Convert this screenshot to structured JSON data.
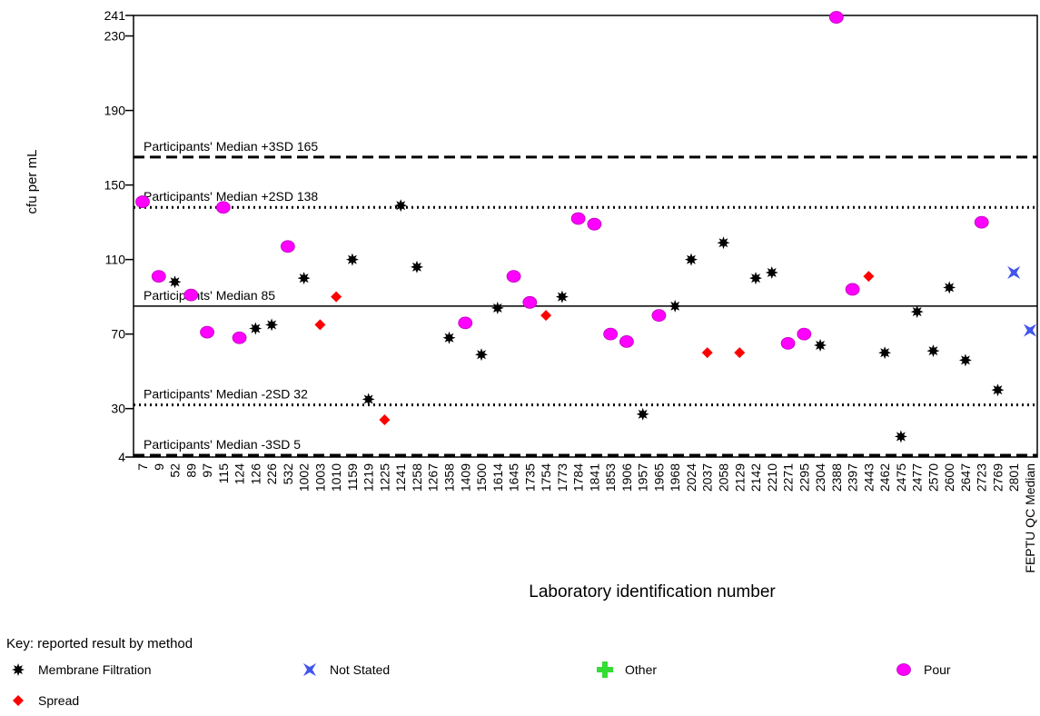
{
  "chart_data": {
    "type": "scatter",
    "y_label": "cfu per mL",
    "x_label": "Laboratory identification number",
    "legend_title": "Key: reported result by method",
    "categories": [
      "7",
      "9",
      "52",
      "89",
      "97",
      "115",
      "124",
      "126",
      "226",
      "532",
      "1002",
      "1003",
      "1010",
      "1159",
      "1219",
      "1225",
      "1241",
      "1258",
      "1267",
      "1358",
      "1409",
      "1500",
      "1614",
      "1645",
      "1735",
      "1754",
      "1773",
      "1784",
      "1841",
      "1853",
      "1906",
      "1957",
      "1965",
      "1968",
      "2024",
      "2037",
      "2058",
      "2129",
      "2142",
      "2210",
      "2271",
      "2295",
      "2304",
      "2388",
      "2397",
      "2443",
      "2462",
      "2475",
      "2477",
      "2570",
      "2600",
      "2647",
      "2723",
      "2769",
      "2801",
      "FEPTU QC Median"
    ],
    "ylim": [
      4,
      241
    ],
    "yticks": [
      4,
      30,
      70,
      110,
      150,
      190,
      230,
      241
    ],
    "reference_lines": [
      {
        "label": "Participants' Median +3SD 165",
        "value": 165,
        "style": "dashed"
      },
      {
        "label": "Participants' Median +2SD 138",
        "value": 138,
        "style": "dotted"
      },
      {
        "label": "Participants' Median 85",
        "value": 85,
        "style": "solid"
      },
      {
        "label": "Participants' Median -2SD 32",
        "value": 32,
        "style": "dotted"
      },
      {
        "label": "Participants' Median -3SD 5",
        "value": 5,
        "style": "dashed"
      }
    ],
    "series": [
      {
        "name": "Membrane Filtration",
        "color": "#000000",
        "marker": "star8",
        "values": [
          null,
          null,
          98,
          null,
          null,
          null,
          null,
          73,
          75,
          null,
          100,
          null,
          null,
          110,
          35,
          null,
          139,
          106,
          null,
          68,
          null,
          59,
          84,
          null,
          null,
          null,
          90,
          null,
          null,
          null,
          null,
          27,
          null,
          85,
          110,
          null,
          119,
          null,
          100,
          103,
          null,
          null,
          64,
          null,
          null,
          null,
          60,
          15,
          82,
          61,
          95,
          56,
          null,
          40,
          null,
          null
        ]
      },
      {
        "name": "Not Stated",
        "color": "#4455ee",
        "marker": "star4",
        "values": [
          null,
          null,
          null,
          null,
          null,
          null,
          null,
          null,
          null,
          null,
          null,
          null,
          null,
          null,
          null,
          null,
          null,
          null,
          null,
          null,
          null,
          null,
          null,
          null,
          null,
          null,
          null,
          null,
          null,
          null,
          null,
          null,
          null,
          null,
          null,
          null,
          null,
          null,
          null,
          null,
          null,
          null,
          null,
          null,
          null,
          null,
          null,
          null,
          null,
          null,
          null,
          null,
          null,
          null,
          103,
          72
        ]
      },
      {
        "name": "Other",
        "color": "#33dd33",
        "marker": "cross",
        "values": [
          null,
          null,
          null,
          null,
          null,
          null,
          null,
          null,
          null,
          null,
          null,
          null,
          null,
          null,
          null,
          null,
          null,
          null,
          null,
          null,
          null,
          null,
          null,
          null,
          null,
          null,
          null,
          null,
          null,
          null,
          null,
          null,
          null,
          null,
          null,
          null,
          null,
          null,
          null,
          null,
          null,
          null,
          null,
          null,
          null,
          null,
          null,
          null,
          null,
          null,
          null,
          null,
          null,
          null,
          null,
          null
        ]
      },
      {
        "name": "Pour",
        "color": "#ff00ff",
        "marker": "ellipse",
        "values": [
          141,
          101,
          null,
          91,
          71,
          138,
          68,
          null,
          null,
          117,
          null,
          null,
          null,
          null,
          null,
          null,
          null,
          null,
          null,
          null,
          76,
          null,
          null,
          101,
          87,
          null,
          null,
          132,
          129,
          70,
          66,
          null,
          80,
          null,
          null,
          null,
          null,
          null,
          null,
          null,
          65,
          70,
          null,
          240,
          94,
          null,
          null,
          null,
          null,
          null,
          null,
          null,
          130,
          null,
          null,
          null
        ]
      },
      {
        "name": "Spread",
        "color": "#ff0000",
        "marker": "diamond",
        "values": [
          null,
          null,
          null,
          null,
          null,
          null,
          null,
          null,
          null,
          null,
          null,
          75,
          90,
          null,
          null,
          24,
          null,
          null,
          null,
          null,
          null,
          null,
          null,
          null,
          null,
          80,
          null,
          null,
          null,
          null,
          null,
          null,
          null,
          null,
          null,
          60,
          null,
          60,
          null,
          null,
          null,
          null,
          null,
          null,
          null,
          101,
          null,
          null,
          null,
          null,
          null,
          null,
          null,
          null,
          null,
          null
        ]
      }
    ]
  }
}
